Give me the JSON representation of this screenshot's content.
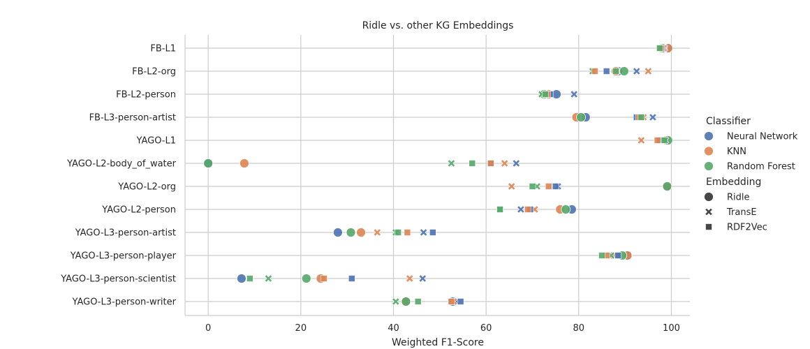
{
  "chart_data": {
    "type": "scatter",
    "title": "Ridle vs. other KG Embeddings",
    "xlabel": "Weighted F1-Score",
    "ylabel": "",
    "xlim": [
      -5,
      104
    ],
    "xticks": [
      "0",
      "20",
      "40",
      "60",
      "80",
      "100"
    ],
    "grid": true,
    "legend_position": "right",
    "datasets": [
      "FB-L1",
      "FB-L2-org",
      "FB-L2-person",
      "FB-L3-person-artist",
      "YAGO-L1",
      "YAGO-L2-body_of_water",
      "YAGO-L2-org",
      "YAGO-L2-person",
      "YAGO-L3-person-artist",
      "YAGO-L3-person-player",
      "YAGO-L3-person-scientist",
      "YAGO-L3-person-writer"
    ],
    "legend": {
      "hue_title": "Classifier",
      "style_title": "Embedding",
      "classifiers": [
        {
          "name": "Neural Network",
          "color": "#4c72b0"
        },
        {
          "name": "KNN",
          "color": "#dd8452"
        },
        {
          "name": "Random Forest",
          "color": "#55a868"
        }
      ],
      "embeddings": [
        {
          "name": "Ridle",
          "marker": "circle"
        },
        {
          "name": "TransE",
          "marker": "x"
        },
        {
          "name": "RDF2Vec",
          "marker": "square"
        }
      ]
    },
    "series": [
      {
        "classifier": "Neural Network",
        "embedding": "Ridle",
        "values": [
          99.3,
          88.5,
          75.2,
          81.5,
          99.1,
          0.0,
          99.0,
          78.5,
          28.0,
          90.6,
          7.2,
          52.8
        ]
      },
      {
        "classifier": "KNN",
        "embedding": "Ridle",
        "values": [
          99.3,
          88.0,
          73.5,
          79.5,
          98.9,
          7.8,
          99.0,
          76.0,
          33.0,
          90.5,
          24.3,
          42.7
        ]
      },
      {
        "classifier": "Random Forest",
        "embedding": "Ridle",
        "values": [
          98.1,
          89.8,
          72.5,
          80.5,
          99.3,
          0.0,
          99.1,
          77.2,
          30.8,
          89.4,
          21.2,
          42.7
        ]
      },
      {
        "classifier": "Neural Network",
        "embedding": "TransE",
        "values": [
          98.5,
          92.5,
          79.0,
          96.0,
          98.7,
          66.5,
          75.5,
          67.5,
          46.5,
          88.0,
          46.3,
          53.5
        ]
      },
      {
        "classifier": "KNN",
        "embedding": "TransE",
        "values": [
          98.3,
          95.0,
          73.0,
          94.0,
          93.5,
          64.0,
          65.5,
          70.5,
          36.5,
          87.5,
          43.5,
          53.0
        ]
      },
      {
        "classifier": "Random Forest",
        "embedding": "TransE",
        "values": [
          97.5,
          83.0,
          72.0,
          93.5,
          98.0,
          52.5,
          71.0,
          63.0,
          40.5,
          87.0,
          13.0,
          40.5
        ]
      },
      {
        "classifier": "Neural Network",
        "embedding": "RDF2Vec",
        "values": [
          98.0,
          86.0,
          73.8,
          92.5,
          97.5,
          61.0,
          75.0,
          69.5,
          48.5,
          88.5,
          31.0,
          54.5
        ]
      },
      {
        "classifier": "KNN",
        "embedding": "RDF2Vec",
        "values": [
          97.8,
          83.5,
          73.2,
          93.0,
          97.0,
          61.0,
          73.5,
          69.0,
          43.0,
          86.0,
          25.0,
          52.5
        ]
      },
      {
        "classifier": "Random Forest",
        "embedding": "RDF2Vec",
        "values": [
          97.5,
          88.0,
          72.8,
          93.5,
          98.5,
          57.0,
          70.0,
          63.0,
          41.0,
          85.0,
          9.0,
          45.3
        ]
      }
    ]
  }
}
